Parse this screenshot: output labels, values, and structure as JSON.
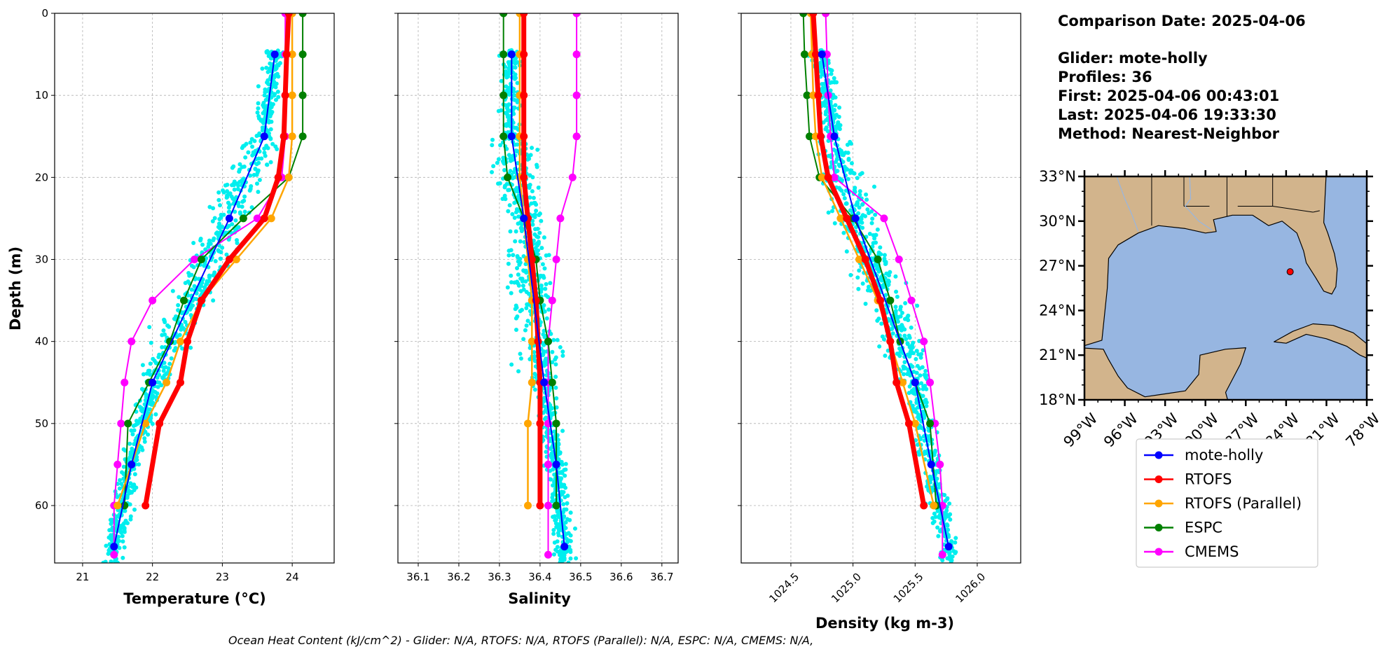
{
  "info": {
    "comparison_date": "Comparison Date: 2025-04-06",
    "glider": "Glider: mote-holly",
    "profiles": "Profiles: 36",
    "first": "First: 2025-04-06 00:43:01",
    "last": "Last: 2025-04-06 19:33:30",
    "method": "Method: Nearest-Neighbor"
  },
  "ohc_text": "Ocean Heat Content (kJ/cm^2) - Glider: N/A,  RTOFS: N/A,  RTOFS (Parallel): N/A,  ESPC: N/A,  CMEMS: N/A,",
  "colors": {
    "mote_holly": "#0000ff",
    "rtofs": "#ff0000",
    "rtofs_parallel": "#ffa500",
    "espc": "#008000",
    "cmems": "#ff00ff",
    "glider_scatter": "#00eeee",
    "ocean": "#97b6e1",
    "land": "#d2b48c"
  },
  "legend": [
    "mote-holly",
    "RTOFS",
    "RTOFS (Parallel)",
    "ESPC",
    "CMEMS"
  ],
  "map": {
    "lat_ticks": [
      "33°N",
      "30°N",
      "27°N",
      "24°N",
      "21°N",
      "18°N"
    ],
    "lon_ticks": [
      "99°W",
      "96°W",
      "93°W",
      "90°W",
      "87°W",
      "84°W",
      "81°W",
      "78°W"
    ],
    "lat_range": [
      18,
      33
    ],
    "lon_range": [
      -99,
      -78
    ],
    "glider_position": {
      "lon": -83.7,
      "lat": 26.6
    }
  },
  "chart_data": [
    {
      "type": "line",
      "xlabel": "Temperature (°C)",
      "ylabel": "Depth (m)",
      "xlim": [
        20.6,
        24.6
      ],
      "ylim": [
        67,
        0
      ],
      "xticks": [
        21,
        22,
        23,
        24
      ],
      "yticks": [
        0,
        10,
        20,
        30,
        40,
        50,
        60
      ],
      "grid": true,
      "series": [
        {
          "name": "mote-holly",
          "depth": [
            5,
            15,
            25,
            45,
            55,
            65
          ],
          "values": [
            23.75,
            23.6,
            23.1,
            22.0,
            21.7,
            21.45
          ]
        },
        {
          "name": "RTOFS",
          "depth": [
            0,
            5,
            10,
            15,
            20,
            25,
            30,
            35,
            40,
            45,
            50,
            60
          ],
          "values": [
            23.95,
            23.92,
            23.9,
            23.88,
            23.8,
            23.6,
            23.1,
            22.7,
            22.5,
            22.4,
            22.1,
            21.9
          ]
        },
        {
          "name": "RTOFS (Parallel)",
          "depth": [
            0,
            5,
            10,
            15,
            20,
            25,
            30,
            35,
            40,
            45,
            50,
            60
          ],
          "values": [
            24.0,
            24.0,
            24.0,
            24.0,
            23.95,
            23.7,
            23.2,
            22.7,
            22.4,
            22.2,
            21.9,
            21.5
          ]
        },
        {
          "name": "ESPC",
          "depth": [
            0,
            5,
            10,
            15,
            20,
            25,
            30,
            35,
            40,
            45,
            50,
            60
          ],
          "values": [
            24.15,
            24.15,
            24.15,
            24.15,
            23.95,
            23.3,
            22.7,
            22.45,
            22.25,
            21.95,
            21.65,
            21.6
          ]
        },
        {
          "name": "CMEMS",
          "depth": [
            0,
            5,
            10,
            15,
            20,
            25,
            30,
            35,
            40,
            45,
            50,
            55,
            60,
            66
          ],
          "values": [
            23.9,
            23.9,
            23.9,
            23.9,
            23.85,
            23.5,
            22.6,
            22.0,
            21.7,
            21.6,
            21.55,
            21.5,
            21.45,
            21.45
          ]
        }
      ]
    },
    {
      "type": "line",
      "xlabel": "Salinity",
      "ylabel": "",
      "xlim": [
        36.05,
        36.74
      ],
      "ylim": [
        67,
        0
      ],
      "xticks": [
        36.1,
        36.2,
        36.3,
        36.4,
        36.5,
        36.6,
        36.7
      ],
      "yticks": [
        0,
        10,
        20,
        30,
        40,
        50,
        60
      ],
      "grid": true,
      "series": [
        {
          "name": "mote-holly",
          "depth": [
            5,
            15,
            25,
            45,
            55,
            65
          ],
          "values": [
            36.33,
            36.33,
            36.36,
            36.41,
            36.44,
            36.46
          ]
        },
        {
          "name": "RTOFS",
          "depth": [
            0,
            5,
            10,
            15,
            20,
            25,
            30,
            35,
            40,
            45,
            50,
            60
          ],
          "values": [
            36.36,
            36.36,
            36.36,
            36.36,
            36.36,
            36.37,
            36.38,
            36.39,
            36.395,
            36.4,
            36.4,
            36.4
          ]
        },
        {
          "name": "RTOFS (Parallel)",
          "depth": [
            0,
            5,
            10,
            15,
            20,
            25,
            30,
            35,
            40,
            45,
            50,
            60
          ],
          "values": [
            36.35,
            36.35,
            36.35,
            36.35,
            36.35,
            36.36,
            36.37,
            36.38,
            36.38,
            36.38,
            36.37,
            36.37
          ]
        },
        {
          "name": "ESPC",
          "depth": [
            0,
            5,
            10,
            15,
            20,
            25,
            30,
            35,
            40,
            45,
            50,
            60
          ],
          "values": [
            36.31,
            36.31,
            36.31,
            36.31,
            36.32,
            36.36,
            36.39,
            36.4,
            36.42,
            36.43,
            36.44,
            36.44
          ]
        },
        {
          "name": "CMEMS",
          "depth": [
            0,
            5,
            10,
            15,
            20,
            25,
            30,
            35,
            40,
            45,
            50,
            55,
            60,
            66
          ],
          "values": [
            36.49,
            36.49,
            36.49,
            36.49,
            36.48,
            36.45,
            36.44,
            36.43,
            36.42,
            36.42,
            36.42,
            36.42,
            36.42,
            36.42
          ]
        }
      ]
    },
    {
      "type": "line",
      "xlabel": "Density (kg m-3)",
      "ylabel": "",
      "xlim": [
        1024.1,
        1026.35
      ],
      "ylim": [
        67,
        0
      ],
      "xticks": [
        1024.5,
        1025.0,
        1025.5,
        1026.0
      ],
      "xticklabels": [
        "1024.5",
        "1025.0",
        "1025.5",
        "1026.0"
      ],
      "yticks": [
        0,
        10,
        20,
        30,
        40,
        50,
        60
      ],
      "grid": true,
      "series": [
        {
          "name": "mote-holly",
          "depth": [
            5,
            15,
            25,
            45,
            55,
            65
          ],
          "values": [
            1024.75,
            1024.85,
            1025.02,
            1025.5,
            1025.63,
            1025.77
          ]
        },
        {
          "name": "RTOFS",
          "depth": [
            0,
            5,
            10,
            15,
            20,
            25,
            30,
            35,
            40,
            45,
            50,
            60
          ],
          "values": [
            1024.68,
            1024.7,
            1024.72,
            1024.74,
            1024.8,
            1024.95,
            1025.1,
            1025.22,
            1025.3,
            1025.35,
            1025.45,
            1025.57
          ]
        },
        {
          "name": "RTOFS (Parallel)",
          "depth": [
            0,
            5,
            10,
            15,
            20,
            25,
            30,
            35,
            40,
            45,
            50,
            60
          ],
          "values": [
            1024.66,
            1024.67,
            1024.68,
            1024.7,
            1024.75,
            1024.9,
            1025.05,
            1025.2,
            1025.3,
            1025.4,
            1025.5,
            1025.65
          ]
        },
        {
          "name": "ESPC",
          "depth": [
            0,
            5,
            10,
            15,
            20,
            25,
            30,
            35,
            40,
            45,
            50,
            60
          ],
          "values": [
            1024.6,
            1024.61,
            1024.63,
            1024.65,
            1024.73,
            1025.0,
            1025.2,
            1025.3,
            1025.38,
            1025.5,
            1025.62,
            1025.67
          ]
        },
        {
          "name": "CMEMS",
          "depth": [
            0,
            5,
            10,
            15,
            20,
            25,
            30,
            35,
            40,
            45,
            50,
            55,
            60,
            66
          ],
          "values": [
            1024.78,
            1024.79,
            1024.8,
            1024.82,
            1024.85,
            1025.25,
            1025.37,
            1025.47,
            1025.57,
            1025.62,
            1025.66,
            1025.7,
            1025.72,
            1025.72
          ]
        }
      ]
    }
  ]
}
